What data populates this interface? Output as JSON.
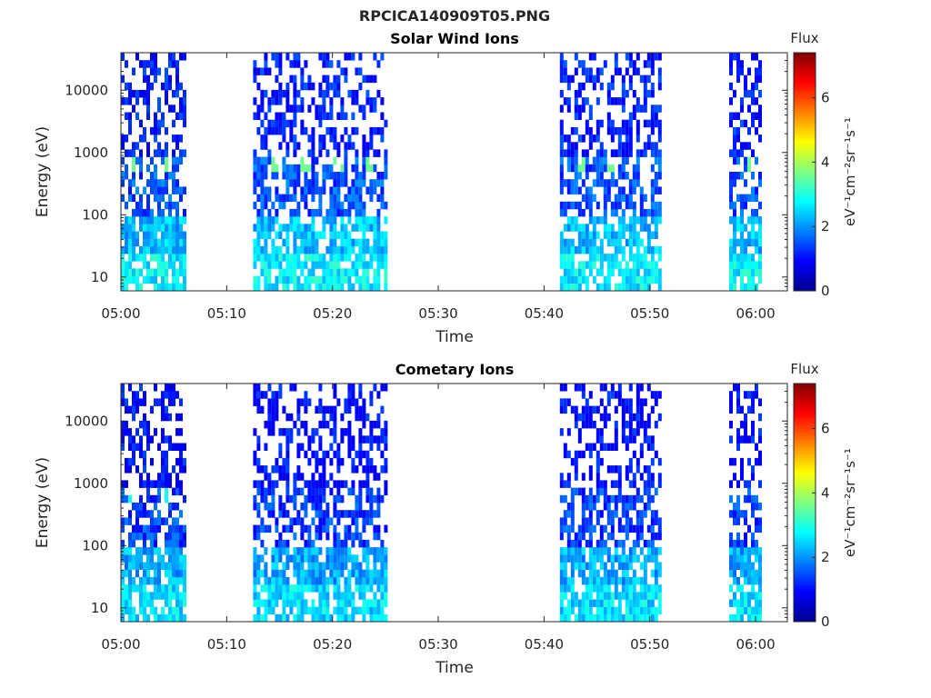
{
  "figure_title": "RPCICA140909T05.PNG",
  "chart_data": [
    {
      "type": "heatmap",
      "title": "Solar Wind Ions",
      "xlabel": "Time",
      "ylabel": "Energy (eV)",
      "x_ticks": [
        "05:00",
        "05:10",
        "05:20",
        "05:30",
        "05:40",
        "05:50",
        "06:00"
      ],
      "y_ticks": [
        "10",
        "100",
        "1000",
        "10000"
      ],
      "y_scale": "log",
      "xlim": [
        "05:00",
        "06:03"
      ],
      "ylim": [
        6,
        40000
      ],
      "colorbar": {
        "title": "Flux",
        "label": "eV⁻¹cm⁻²sr⁻¹s⁻¹",
        "ticks": [
          "0",
          "2",
          "4",
          "6"
        ],
        "range": [
          0,
          7.4
        ],
        "colormap": "jet"
      },
      "data_intervals": [
        [
          "05:00",
          "05:06"
        ],
        [
          "05:12.5",
          "05:25"
        ],
        [
          "05:41.5",
          "05:51"
        ],
        [
          "05:57.5",
          "06:00.5"
        ]
      ],
      "hotspot_energy_eV": 650,
      "hotspot_times": [
        "05:01",
        "05:04.5",
        "05:14.5",
        "05:17.5",
        "05:20.5",
        "05:23.5",
        "05:43.5",
        "05:46.5",
        "05:49.5",
        "05:59.5"
      ]
    },
    {
      "type": "heatmap",
      "title": "Cometary Ions",
      "xlabel": "Time",
      "ylabel": "Energy (eV)",
      "x_ticks": [
        "05:00",
        "05:10",
        "05:20",
        "05:30",
        "05:40",
        "05:50",
        "06:00"
      ],
      "y_ticks": [
        "10",
        "100",
        "1000",
        "10000"
      ],
      "y_scale": "log",
      "xlim": [
        "05:00",
        "06:03"
      ],
      "ylim": [
        6,
        40000
      ],
      "colorbar": {
        "title": "Flux",
        "label": "eV⁻¹cm⁻²sr⁻¹s⁻¹",
        "ticks": [
          "0",
          "2",
          "4",
          "6"
        ],
        "range": [
          0,
          7.4
        ],
        "colormap": "jet"
      },
      "data_intervals": [
        [
          "05:00",
          "05:06"
        ],
        [
          "05:12.5",
          "05:25"
        ],
        [
          "05:41.5",
          "05:51"
        ],
        [
          "05:57.5",
          "06:00.5"
        ]
      ],
      "hotspot_energy_eV": 600,
      "hotspot_times": [
        "05:01",
        "05:04.5"
      ]
    }
  ]
}
